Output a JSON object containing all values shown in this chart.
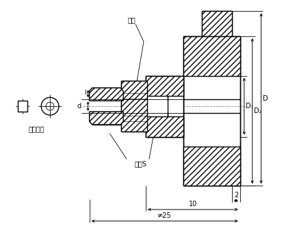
{
  "bg_color": "#ffffff",
  "label_kassette": "卡套",
  "label_movable": "可动卡套",
  "label_wrench": "板手S",
  "label_d": "d",
  "label_l": "l",
  "label_D1": "D₁",
  "label_D2": "D₂",
  "label_D": "D",
  "label_2": "2",
  "label_10": "10",
  "label_25": "≠25",
  "lw_main": 1.0,
  "lw_thin": 0.6,
  "lw_dim": 0.7
}
